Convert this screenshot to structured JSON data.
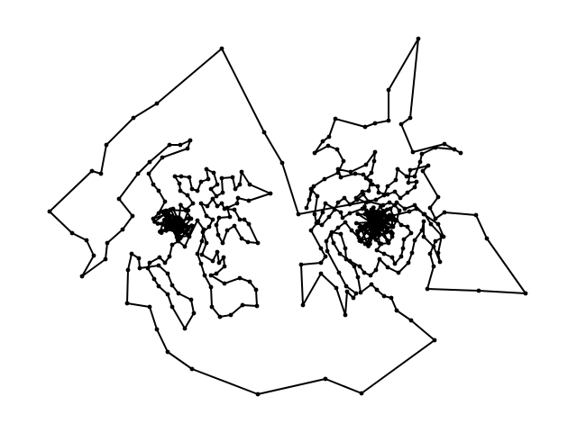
{
  "diagram": {
    "stroke_color": "#000000",
    "node_color": "#000000",
    "background": "#ffffff"
  }
}
